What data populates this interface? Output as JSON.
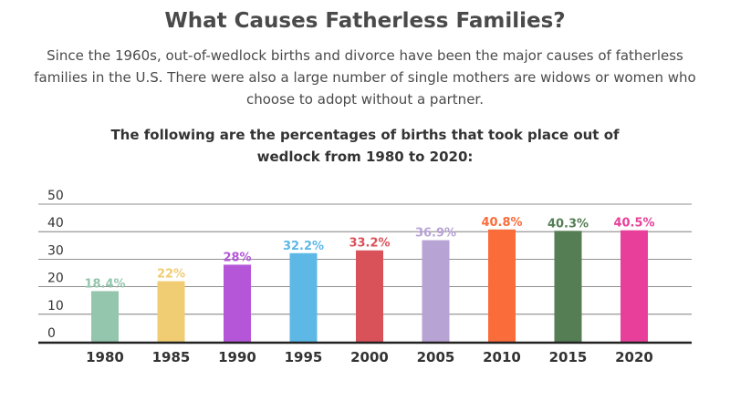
{
  "header": {
    "title": "What Causes Fatherless Families?",
    "subtitle": "Since the 1960s, out-of-wedlock births and divorce have been the major causes of fatherless families in the U.S. There were also a large number of single mothers are widows or women who choose to adopt without a partner."
  },
  "chart_data": {
    "type": "bar",
    "title": "The following are the percentages of births that took place out of wedlock from 1980 to 2020:",
    "categories": [
      "1980",
      "1985",
      "1990",
      "1995",
      "2000",
      "2005",
      "2010",
      "2015",
      "2020"
    ],
    "values": [
      18.4,
      22,
      28,
      32.2,
      33.2,
      36.9,
      40.8,
      40.3,
      40.5
    ],
    "data_labels": [
      "18.4%",
      "22%",
      "28%",
      "32.2%",
      "33.2%",
      "36.9%",
      "40.8%",
      "40.3%",
      "40.5%"
    ],
    "colors": [
      "#93c6ac",
      "#f0cd72",
      "#b556d9",
      "#5db8e6",
      "#d9525a",
      "#b8a3d5",
      "#fb6c3b",
      "#557e55",
      "#e8409a"
    ],
    "yticks": [
      "0",
      "10",
      "20",
      "30",
      "40",
      "50"
    ],
    "ylim": [
      0,
      50
    ],
    "grid": true,
    "xlabel": "",
    "ylabel": ""
  }
}
